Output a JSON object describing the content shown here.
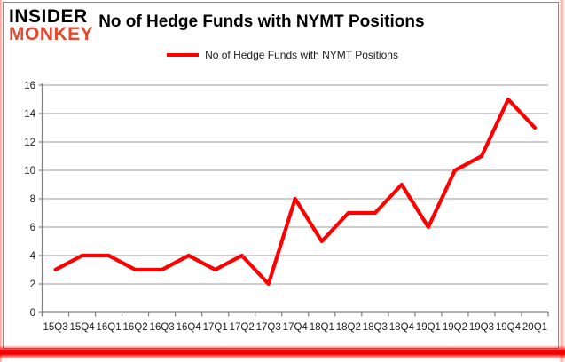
{
  "brand": {
    "line1": "INSIDER",
    "line2": "MONKEY",
    "insider_color": "#000000",
    "monkey_color": "#e2492f"
  },
  "header": {
    "title": "No of Hedge Funds with NYMT Positions"
  },
  "legend": {
    "label": "No of Hedge Funds with NYMT Positions",
    "swatch_color": "#ff0000"
  },
  "chart_data": {
    "type": "line",
    "title": "No of Hedge Funds with NYMT Positions",
    "categories": [
      "15Q3",
      "15Q4",
      "16Q1",
      "16Q2",
      "16Q3",
      "16Q4",
      "17Q1",
      "17Q2",
      "17Q3",
      "17Q4",
      "18Q1",
      "18Q2",
      "18Q3",
      "18Q4",
      "19Q1",
      "19Q2",
      "19Q3",
      "19Q4",
      "20Q1"
    ],
    "series": [
      {
        "name": "No of Hedge Funds with NYMT Positions",
        "color": "#ff0000",
        "values": [
          3,
          4,
          4,
          3,
          3,
          4,
          3,
          4,
          2,
          8,
          5,
          7,
          7,
          9,
          6,
          10,
          11,
          15,
          13
        ]
      }
    ],
    "xlabel": "",
    "ylabel": "",
    "ylim": [
      0,
      16
    ],
    "ytick_step": 2,
    "yticks": [
      0,
      2,
      4,
      6,
      8,
      10,
      12,
      14,
      16
    ],
    "grid": "horizontal",
    "legend_position": "top-center",
    "colors": {
      "gridline": "#9c9c9c",
      "axis": "#7f7f7f",
      "tick_label": "#1c1c1c"
    }
  }
}
